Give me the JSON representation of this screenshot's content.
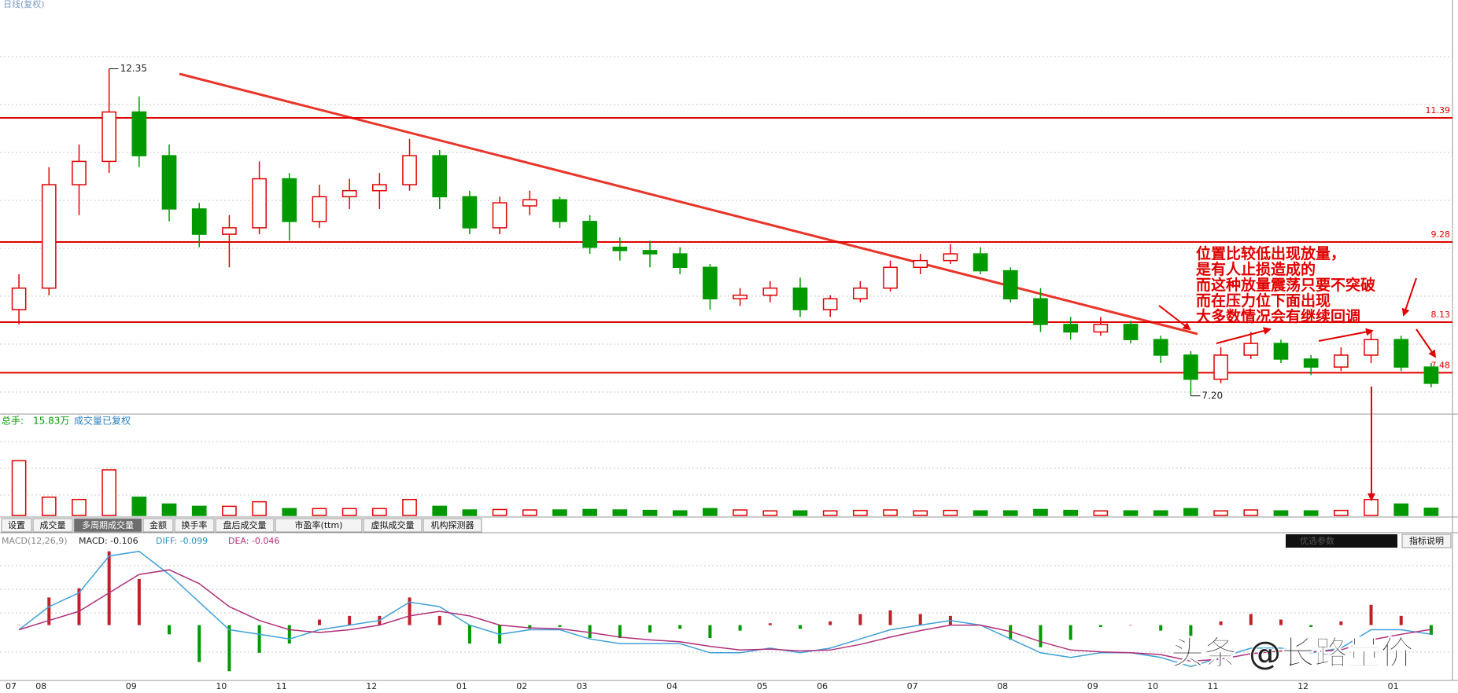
{
  "header": {
    "title": "日线(复权)"
  },
  "tabs": [
    "设置",
    "成交量",
    "多周期成交量",
    "金额",
    "换手率",
    "盘后成交量",
    "市盈率(ttm)",
    "虚拟成交量",
    "机构探测器"
  ],
  "selected_tab": 2,
  "buttons": [
    "优选参数",
    "指标说明"
  ],
  "watermark": "头条 @长路量价",
  "chart_data": [
    {
      "type": "candlestick",
      "log_scale": true,
      "ylim": [
        7.05,
        13.48
      ],
      "categories": [
        "07",
        "08",
        null,
        null,
        "09",
        null,
        null,
        "10",
        null,
        "11",
        null,
        null,
        "12",
        null,
        null,
        "01",
        null,
        "02",
        null,
        "03",
        null,
        null,
        "04",
        null,
        null,
        "05",
        null,
        "06",
        null,
        null,
        "07",
        null,
        null,
        "08",
        null,
        null,
        "09",
        null,
        "10",
        null,
        "11",
        null,
        null,
        "12",
        null,
        null,
        "01",
        null
      ],
      "candles": [
        [
          8.3,
          8.8,
          8.1,
          8.6
        ],
        [
          8.6,
          10.5,
          8.5,
          10.2
        ],
        [
          10.2,
          10.9,
          9.7,
          10.6
        ],
        [
          10.6,
          12.35,
          10.4,
          11.5
        ],
        [
          11.5,
          11.8,
          10.5,
          10.7
        ],
        [
          10.7,
          10.9,
          9.6,
          9.8
        ],
        [
          9.8,
          9.9,
          9.2,
          9.4
        ],
        [
          9.4,
          9.7,
          8.9,
          9.5
        ],
        [
          9.5,
          10.6,
          9.4,
          10.3
        ],
        [
          10.3,
          10.4,
          9.3,
          9.6
        ],
        [
          9.6,
          10.2,
          9.5,
          10.0
        ],
        [
          10.0,
          10.3,
          9.8,
          10.1
        ],
        [
          10.1,
          10.4,
          9.8,
          10.2
        ],
        [
          10.2,
          11.0,
          10.1,
          10.7
        ],
        [
          10.7,
          10.8,
          9.8,
          10.0
        ],
        [
          10.0,
          10.1,
          9.4,
          9.5
        ],
        [
          9.5,
          10.0,
          9.4,
          9.9
        ],
        [
          9.85,
          10.1,
          9.7,
          9.95
        ],
        [
          9.95,
          10.0,
          9.5,
          9.6
        ],
        [
          9.6,
          9.7,
          9.1,
          9.2
        ],
        [
          9.2,
          9.35,
          9.0,
          9.15
        ],
        [
          9.15,
          9.3,
          8.9,
          9.1
        ],
        [
          9.1,
          9.2,
          8.8,
          8.9
        ],
        [
          8.9,
          8.95,
          8.3,
          8.45
        ],
        [
          8.45,
          8.6,
          8.35,
          8.5
        ],
        [
          8.5,
          8.7,
          8.4,
          8.6
        ],
        [
          8.6,
          8.75,
          8.2,
          8.3
        ],
        [
          8.3,
          8.5,
          8.2,
          8.45
        ],
        [
          8.45,
          8.7,
          8.4,
          8.6
        ],
        [
          8.6,
          9.0,
          8.55,
          8.9
        ],
        [
          8.9,
          9.1,
          8.8,
          9.0
        ],
        [
          9.0,
          9.25,
          8.95,
          9.1
        ],
        [
          9.1,
          9.2,
          8.8,
          8.85
        ],
        [
          8.85,
          8.9,
          8.4,
          8.45
        ],
        [
          8.45,
          8.6,
          8.0,
          8.1
        ],
        [
          8.1,
          8.2,
          7.9,
          8.0
        ],
        [
          8.0,
          8.2,
          7.95,
          8.1
        ],
        [
          8.1,
          8.15,
          7.85,
          7.9
        ],
        [
          7.9,
          7.95,
          7.6,
          7.7
        ],
        [
          7.7,
          7.75,
          7.2,
          7.4
        ],
        [
          7.4,
          7.8,
          7.35,
          7.7
        ],
        [
          7.7,
          8.0,
          7.65,
          7.85
        ],
        [
          7.85,
          7.9,
          7.6,
          7.65
        ],
        [
          7.65,
          7.7,
          7.45,
          7.55
        ],
        [
          7.55,
          7.8,
          7.5,
          7.7
        ],
        [
          7.7,
          8.0,
          7.6,
          7.9
        ],
        [
          7.9,
          7.95,
          7.5,
          7.55
        ],
        [
          7.55,
          7.6,
          7.3,
          7.35
        ]
      ],
      "up_color": "#e00000",
      "down_color": "#009a00",
      "high_label": "12.35",
      "low_label": "7.20",
      "levels": [
        11.39,
        9.28,
        8.13,
        7.48
      ],
      "level_color": "#e00000",
      "trend_color": "#e8352a",
      "annotation": [
        "位置比较低出现放量，",
        "是有人止损造成的",
        "而这种放量震荡只要不突破",
        "而在压力位下面出现",
        "大多数情况会有继续回调"
      ]
    },
    {
      "type": "bar",
      "label": "总手:",
      "note": "成交量已复权",
      "ylim": [
        0,
        200
      ],
      "values": [
        120,
        40,
        35,
        100,
        40,
        25,
        20,
        20,
        30,
        15,
        15,
        15,
        15,
        35,
        20,
        12,
        13,
        12,
        12,
        13,
        12,
        11,
        10,
        15,
        12,
        10,
        10,
        10,
        11,
        12,
        10,
        11,
        10,
        10,
        13,
        11,
        10,
        10,
        10,
        15,
        10,
        12,
        10,
        10,
        11,
        35,
        25,
        15.83
      ],
      "value_labels": [
        null,
        null,
        null,
        null,
        null,
        null,
        null,
        null,
        null,
        null,
        null,
        null,
        null,
        null,
        null,
        null,
        null,
        null,
        null,
        null,
        null,
        null,
        null,
        null,
        null,
        null,
        null,
        null,
        null,
        null,
        null,
        null,
        null,
        null,
        null,
        null,
        null,
        null,
        null,
        null,
        null,
        null,
        null,
        null,
        null,
        null,
        null,
        "15.83万"
      ]
    },
    {
      "type": "macd",
      "title": "MACD(12,26,9)",
      "ylim": [
        -0.6,
        0.9
      ],
      "legend": [
        "MACD: -0.106",
        "DIFF: -0.099",
        "DEA: -0.046"
      ],
      "series": [
        {
          "color": "#c0202a",
          "values": [
            0,
            0.3,
            0.4,
            0.8,
            0.5,
            -0.1,
            -0.4,
            -0.5,
            -0.3,
            -0.2,
            0.06,
            0.1,
            0.1,
            0.3,
            0.1,
            -0.2,
            -0.2,
            -0.04,
            -0.02,
            -0.14,
            -0.14,
            -0.08,
            -0.04,
            -0.14,
            -0.06,
            0.02,
            -0.04,
            0.04,
            0.12,
            0.16,
            0.12,
            0.1,
            0,
            -0.16,
            -0.24,
            -0.16,
            -0.02,
            0,
            -0.06,
            -0.12,
            0.04,
            0.12,
            0.06,
            -0.02,
            0.04,
            0.22,
            0.1,
            -0.106
          ]
        },
        {
          "color": "#3fa0d8",
          "values": [
            -0.05,
            0.2,
            0.35,
            0.75,
            0.8,
            0.55,
            0.25,
            -0.05,
            -0.1,
            -0.15,
            -0.05,
            0.0,
            0.05,
            0.25,
            0.2,
            0.0,
            -0.1,
            -0.05,
            -0.05,
            -0.15,
            -0.2,
            -0.2,
            -0.2,
            -0.3,
            -0.3,
            -0.25,
            -0.3,
            -0.25,
            -0.15,
            -0.05,
            0.0,
            0.05,
            0.0,
            -0.15,
            -0.3,
            -0.35,
            -0.3,
            -0.3,
            -0.35,
            -0.45,
            -0.35,
            -0.25,
            -0.25,
            -0.3,
            -0.25,
            -0.05,
            -0.05,
            -0.099
          ]
        },
        {
          "color": "#b0307a",
          "values": [
            -0.05,
            0.05,
            0.15,
            0.35,
            0.55,
            0.6,
            0.45,
            0.2,
            0.05,
            -0.05,
            -0.08,
            -0.05,
            0.0,
            0.1,
            0.15,
            0.1,
            0.0,
            -0.03,
            -0.04,
            -0.08,
            -0.13,
            -0.16,
            -0.18,
            -0.23,
            -0.27,
            -0.26,
            -0.28,
            -0.27,
            -0.21,
            -0.13,
            -0.06,
            0.0,
            0.0,
            -0.07,
            -0.18,
            -0.27,
            -0.29,
            -0.3,
            -0.32,
            -0.39,
            -0.37,
            -0.31,
            -0.28,
            -0.29,
            -0.27,
            -0.16,
            -0.1,
            -0.046
          ]
        }
      ]
    }
  ]
}
